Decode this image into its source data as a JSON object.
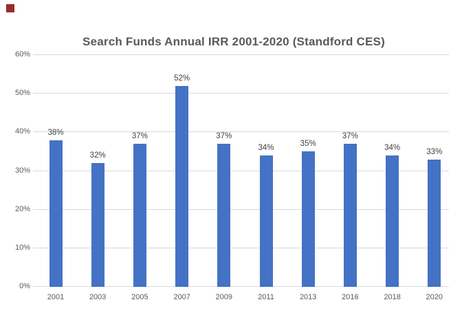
{
  "chart_data": {
    "type": "bar",
    "title": "Search Funds Annual IRR 2001-2020 (Standford CES)",
    "xlabel": "",
    "ylabel": "",
    "categories": [
      "2001",
      "2003",
      "2005",
      "2007",
      "2009",
      "2011",
      "2013",
      "2016",
      "2018",
      "2020"
    ],
    "values": [
      38,
      32,
      37,
      52,
      37,
      34,
      35,
      37,
      34,
      33
    ],
    "value_labels": [
      "38%",
      "32%",
      "37%",
      "52%",
      "37%",
      "34%",
      "35%",
      "37%",
      "34%",
      "33%"
    ],
    "ylim": [
      0,
      60
    ],
    "ytick_step": 10,
    "ytick_labels": [
      "0%",
      "10%",
      "20%",
      "30%",
      "40%",
      "50%",
      "60%"
    ],
    "grid": true,
    "legend": false,
    "colors": {
      "bar": "#4472C4",
      "gridline": "#D9D9D9",
      "title_text": "#595959",
      "axis_text": "#595959",
      "value_label_text": "#404040",
      "background": "#FFFFFF",
      "corner_marker": "#9B2B2B"
    }
  }
}
